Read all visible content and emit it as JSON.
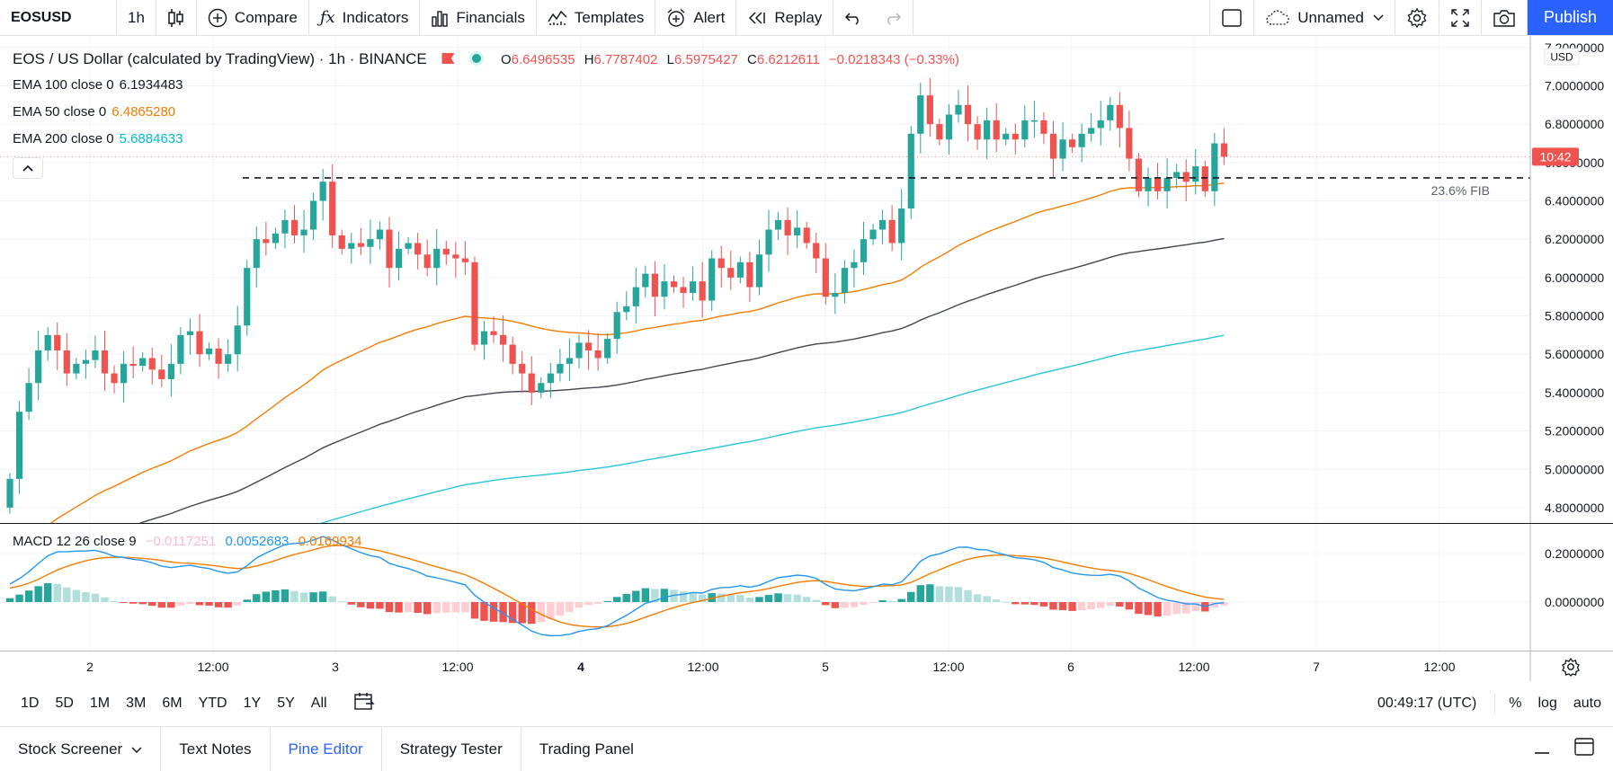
{
  "toolbar": {
    "symbol": "EOSUSD",
    "interval": "1h",
    "compare": "Compare",
    "indicators": "Indicators",
    "financials": "Financials",
    "templates": "Templates",
    "alert": "Alert",
    "replay": "Replay",
    "layout_name": "Unnamed",
    "publish": "Publish"
  },
  "legend": {
    "title": "EOS / US Dollar (calculated by TradingView) · 1h · BINANCE",
    "o_label": "O",
    "o": "6.6496535",
    "h_label": "H",
    "h": "6.7787402",
    "l_label": "L",
    "l": "6.5975427",
    "c_label": "C",
    "c": "6.6212611",
    "change": "−0.0218343 (−0.33%)",
    "ema100_label": "EMA 100 close 0",
    "ema100": "6.1934483",
    "ema50_label": "EMA 50 close 0",
    "ema50": "6.4865280",
    "ema200_label": "EMA 200 close 0",
    "ema200": "5.6884633",
    "macd_label": "MACD 12 26 close 9",
    "macd_hist": "−0.0117251",
    "macd_line": "0.0052683",
    "macd_signal": "0.0169934"
  },
  "price_axis": {
    "ticks": [
      "7.2000000",
      "7.0000000",
      "6.8000000",
      "6.6000000",
      "6.4000000",
      "6.2000000",
      "6.0000000",
      "5.8000000",
      "5.6000000",
      "5.4000000",
      "5.2000000",
      "5.0000000",
      "4.8000000"
    ],
    "currency": "USD",
    "countdown": "10:42"
  },
  "macd_axis": {
    "ticks": [
      "0.2000000",
      "0.0000000"
    ]
  },
  "time_axis": {
    "ticks": [
      "2",
      "12:00",
      "3",
      "12:00",
      "4",
      "12:00",
      "5",
      "12:00",
      "6",
      "12:00",
      "7",
      "12:00"
    ]
  },
  "fib_label": "23.6% FIB",
  "range_buttons": [
    "1D",
    "5D",
    "1M",
    "3M",
    "6M",
    "YTD",
    "1Y",
    "5Y",
    "All"
  ],
  "clock": "00:49:17 (UTC)",
  "scale_buttons": [
    "%",
    "log",
    "auto"
  ],
  "panel_tabs": [
    "Stock Screener",
    "Text Notes",
    "Pine Editor",
    "Strategy Tester",
    "Trading Panel"
  ],
  "colors": {
    "up": "#26a69a",
    "down": "#ef5350",
    "ema50": "#f57c00",
    "ema100": "#434651",
    "ema200": "#26c6da",
    "macd": "#2196f3",
    "signal": "#f57c00",
    "accent": "#2962ff"
  },
  "chart_data": {
    "type": "candlestick",
    "interval": "1h",
    "ylim": [
      4.72,
      7.26
    ],
    "fib_level": 6.52,
    "closes": [
      4.95,
      5.3,
      5.45,
      5.62,
      5.7,
      5.62,
      5.5,
      5.55,
      5.57,
      5.62,
      5.5,
      5.45,
      5.55,
      5.54,
      5.58,
      5.52,
      5.47,
      5.55,
      5.7,
      5.72,
      5.6,
      5.63,
      5.55,
      5.6,
      5.75,
      6.05,
      6.2,
      6.18,
      6.23,
      6.3,
      6.22,
      6.25,
      6.4,
      6.5,
      6.22,
      6.15,
      6.18,
      6.16,
      6.2,
      6.25,
      6.05,
      6.15,
      6.18,
      6.12,
      6.05,
      6.15,
      6.12,
      6.1,
      6.08,
      5.65,
      5.72,
      5.7,
      5.65,
      5.55,
      5.5,
      5.4,
      5.45,
      5.5,
      5.55,
      5.58,
      5.66,
      5.62,
      5.58,
      5.68,
      5.82,
      5.85,
      5.95,
      6.02,
      5.9,
      5.98,
      5.95,
      5.92,
      5.98,
      5.88,
      6.1,
      6.05,
      6.0,
      6.08,
      5.95,
      6.12,
      6.25,
      6.3,
      6.22,
      6.26,
      6.18,
      6.1,
      5.9,
      5.92,
      6.05,
      6.08,
      6.2,
      6.25,
      6.3,
      6.18,
      6.36,
      6.75,
      6.95,
      6.8,
      6.72,
      6.85,
      6.9,
      6.8,
      6.72,
      6.82,
      6.72,
      6.75,
      6.72,
      6.82,
      6.82,
      6.75,
      6.62,
      6.72,
      6.68,
      6.75,
      6.78,
      6.82,
      6.9,
      6.78,
      6.62,
      6.45,
      6.52,
      6.45,
      6.52,
      6.55,
      6.5,
      6.58,
      6.45,
      6.7,
      6.63
    ]
  }
}
